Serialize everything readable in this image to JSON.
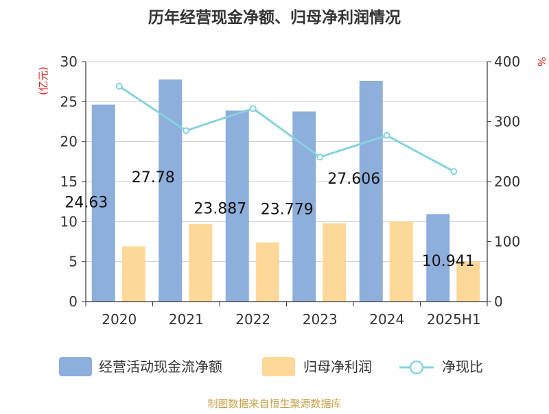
{
  "chart_data": {
    "type": "bar",
    "title": "历年经营现金净额、归母净利润情况",
    "ylabel": "(亿元)",
    "y2label": "%",
    "categories": [
      "2020",
      "2021",
      "2022",
      "2023",
      "2024",
      "2025H1"
    ],
    "ylim": [
      0,
      30
    ],
    "yticks": [
      0,
      5,
      10,
      15,
      20,
      25,
      30
    ],
    "y2lim": [
      0,
      400
    ],
    "y2ticks": [
      0,
      100,
      200,
      300,
      400
    ],
    "grid": true,
    "legend_position": "bottom",
    "series": [
      {
        "name": "经营活动现金流净额",
        "type": "bar",
        "axis": "left",
        "color": "#8eaedb",
        "values": [
          24.63,
          27.78,
          23.887,
          23.779,
          27.606,
          10.941
        ],
        "data_labels": [
          "24.63",
          "27.78",
          "23.887",
          "23.779",
          "27.606",
          "10.941"
        ]
      },
      {
        "name": "归母净利润",
        "type": "bar",
        "axis": "left",
        "color": "#fed898",
        "values": [
          6.9,
          9.7,
          7.4,
          9.8,
          10.0,
          5.0
        ]
      },
      {
        "name": "净现比",
        "type": "line",
        "axis": "right",
        "color": "#86d3dc",
        "values": [
          359,
          285,
          322,
          241,
          277,
          217
        ]
      }
    ],
    "source": "制图数据来自恒生聚源数据库"
  }
}
